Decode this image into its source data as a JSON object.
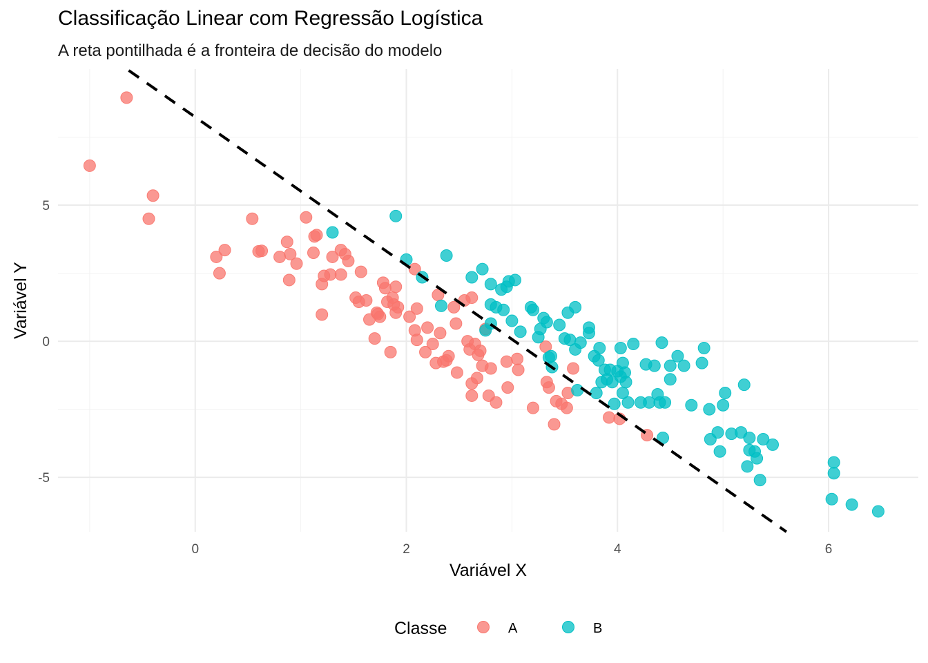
{
  "chart_data": {
    "type": "scatter",
    "title": "Classificação Linear com Regressão Logística",
    "subtitle": "A reta pontilhada é a fronteira de decisão do modelo",
    "xlabel": "Variável X",
    "ylabel": "Variável Y",
    "xlim": [
      -1.3,
      6.85
    ],
    "ylim": [
      -7.0,
      10.0
    ],
    "x_ticks": [
      0,
      2,
      4,
      6
    ],
    "y_ticks": [
      -5,
      0,
      5
    ],
    "grid": true,
    "legend": {
      "title": "Classe",
      "placement": "bottom"
    },
    "decision_boundary": {
      "style": "dashed",
      "color": "#000000",
      "x": [
        -0.63,
        5.6
      ],
      "y": [
        9.95,
        -7.0
      ]
    },
    "series": [
      {
        "name": "A",
        "color": "#F8766D",
        "points": [
          [
            -0.65,
            8.95
          ],
          [
            -1.0,
            6.45
          ],
          [
            -0.4,
            5.35
          ],
          [
            -0.44,
            4.5
          ],
          [
            0.2,
            3.1
          ],
          [
            0.28,
            3.35
          ],
          [
            0.23,
            2.5
          ],
          [
            0.54,
            4.5
          ],
          [
            0.6,
            3.3
          ],
          [
            0.63,
            3.32
          ],
          [
            0.8,
            3.1
          ],
          [
            0.87,
            3.65
          ],
          [
            0.9,
            3.2
          ],
          [
            0.89,
            2.25
          ],
          [
            0.96,
            2.85
          ],
          [
            1.05,
            4.55
          ],
          [
            1.13,
            3.85
          ],
          [
            1.15,
            3.9
          ],
          [
            1.12,
            3.25
          ],
          [
            1.2,
            2.1
          ],
          [
            1.22,
            2.4
          ],
          [
            1.2,
            0.98
          ],
          [
            1.28,
            2.45
          ],
          [
            1.3,
            3.1
          ],
          [
            1.38,
            2.45
          ],
          [
            1.38,
            3.35
          ],
          [
            1.42,
            3.2
          ],
          [
            1.45,
            2.95
          ],
          [
            1.52,
            1.6
          ],
          [
            1.55,
            1.45
          ],
          [
            1.57,
            2.55
          ],
          [
            1.62,
            1.5
          ],
          [
            1.65,
            0.8
          ],
          [
            1.7,
            0.1
          ],
          [
            1.72,
            1.05
          ],
          [
            1.73,
            1.0
          ],
          [
            1.75,
            0.9
          ],
          [
            1.78,
            2.15
          ],
          [
            1.8,
            1.95
          ],
          [
            1.82,
            1.45
          ],
          [
            1.85,
            -0.4
          ],
          [
            1.87,
            1.6
          ],
          [
            1.88,
            1.35
          ],
          [
            1.9,
            1.05
          ],
          [
            1.9,
            2.0
          ],
          [
            1.92,
            1.25
          ],
          [
            2.03,
            0.9
          ],
          [
            2.08,
            2.65
          ],
          [
            2.08,
            0.4
          ],
          [
            2.1,
            1.2
          ],
          [
            2.1,
            0.05
          ],
          [
            2.18,
            -0.4
          ],
          [
            2.2,
            0.5
          ],
          [
            2.25,
            -0.1
          ],
          [
            2.28,
            -0.8
          ],
          [
            2.3,
            1.7
          ],
          [
            2.32,
            0.3
          ],
          [
            2.35,
            -0.75
          ],
          [
            2.38,
            -0.7
          ],
          [
            2.4,
            -0.55
          ],
          [
            2.45,
            1.25
          ],
          [
            2.47,
            0.65
          ],
          [
            2.48,
            -1.15
          ],
          [
            2.55,
            1.5
          ],
          [
            2.58,
            0.0
          ],
          [
            2.6,
            -0.3
          ],
          [
            2.62,
            -1.55
          ],
          [
            2.62,
            1.6
          ],
          [
            2.62,
            -2.0
          ],
          [
            2.65,
            -0.1
          ],
          [
            2.67,
            -1.35
          ],
          [
            2.68,
            -0.5
          ],
          [
            2.7,
            -0.35
          ],
          [
            2.72,
            -0.9
          ],
          [
            2.75,
            0.45
          ],
          [
            2.78,
            -2.0
          ],
          [
            2.8,
            -1.0
          ],
          [
            2.85,
            -2.25
          ],
          [
            2.95,
            -0.75
          ],
          [
            2.96,
            -1.7
          ],
          [
            3.05,
            -0.65
          ],
          [
            3.06,
            -1.05
          ],
          [
            3.2,
            -2.45
          ],
          [
            3.32,
            -0.2
          ],
          [
            3.33,
            -1.5
          ],
          [
            3.35,
            -1.7
          ],
          [
            3.4,
            -3.05
          ],
          [
            3.42,
            -2.2
          ],
          [
            3.47,
            -2.3
          ],
          [
            3.52,
            -2.45
          ],
          [
            3.53,
            -1.9
          ],
          [
            3.58,
            -1.0
          ],
          [
            3.92,
            -2.8
          ],
          [
            4.02,
            -2.85
          ],
          [
            4.28,
            -3.45
          ]
        ]
      },
      {
        "name": "B",
        "color": "#00BFC4",
        "points": [
          [
            1.3,
            4.0
          ],
          [
            1.9,
            4.6
          ],
          [
            2.0,
            3.0
          ],
          [
            2.15,
            2.35
          ],
          [
            2.33,
            1.3
          ],
          [
            2.38,
            3.15
          ],
          [
            2.62,
            2.35
          ],
          [
            2.72,
            2.65
          ],
          [
            2.75,
            0.4
          ],
          [
            2.8,
            1.35
          ],
          [
            2.8,
            2.1
          ],
          [
            2.8,
            0.65
          ],
          [
            2.85,
            1.25
          ],
          [
            2.9,
            1.9
          ],
          [
            2.92,
            1.15
          ],
          [
            2.95,
            2.0
          ],
          [
            2.97,
            2.2
          ],
          [
            3.0,
            0.75
          ],
          [
            3.03,
            2.25
          ],
          [
            3.08,
            0.35
          ],
          [
            3.18,
            1.25
          ],
          [
            3.2,
            1.15
          ],
          [
            3.25,
            0.15
          ],
          [
            3.27,
            0.45
          ],
          [
            3.3,
            0.85
          ],
          [
            3.33,
            0.7
          ],
          [
            3.35,
            -0.6
          ],
          [
            3.37,
            -0.55
          ],
          [
            3.38,
            -0.95
          ],
          [
            3.45,
            0.6
          ],
          [
            3.5,
            0.1
          ],
          [
            3.53,
            1.05
          ],
          [
            3.55,
            0.05
          ],
          [
            3.6,
            1.25
          ],
          [
            3.6,
            -0.3
          ],
          [
            3.62,
            -1.8
          ],
          [
            3.65,
            -0.05
          ],
          [
            3.73,
            0.5
          ],
          [
            3.73,
            0.3
          ],
          [
            3.78,
            -0.55
          ],
          [
            3.8,
            -1.9
          ],
          [
            3.82,
            -0.7
          ],
          [
            3.83,
            -0.25
          ],
          [
            3.85,
            -1.5
          ],
          [
            3.88,
            -1.05
          ],
          [
            3.9,
            -1.4
          ],
          [
            3.93,
            -1.05
          ],
          [
            3.95,
            -1.5
          ],
          [
            3.97,
            -2.3
          ],
          [
            4.0,
            -1.1
          ],
          [
            4.03,
            -0.25
          ],
          [
            4.03,
            -1.3
          ],
          [
            4.05,
            -1.9
          ],
          [
            4.05,
            -0.8
          ],
          [
            4.07,
            -1.15
          ],
          [
            4.08,
            -1.5
          ],
          [
            4.1,
            -2.25
          ],
          [
            4.15,
            -0.1
          ],
          [
            4.22,
            -2.25
          ],
          [
            4.27,
            -0.85
          ],
          [
            4.3,
            -2.25
          ],
          [
            4.35,
            -0.9
          ],
          [
            4.38,
            -1.95
          ],
          [
            4.4,
            -2.25
          ],
          [
            4.42,
            -0.05
          ],
          [
            4.43,
            -3.55
          ],
          [
            4.45,
            -2.25
          ],
          [
            4.5,
            -1.4
          ],
          [
            4.5,
            -0.9
          ],
          [
            4.57,
            -0.55
          ],
          [
            4.63,
            -0.9
          ],
          [
            4.7,
            -2.35
          ],
          [
            4.8,
            -0.8
          ],
          [
            4.82,
            -0.25
          ],
          [
            4.87,
            -2.5
          ],
          [
            4.88,
            -3.6
          ],
          [
            4.95,
            -3.35
          ],
          [
            4.97,
            -4.05
          ],
          [
            5.0,
            -2.35
          ],
          [
            5.02,
            -1.9
          ],
          [
            5.08,
            -3.4
          ],
          [
            5.2,
            -1.6
          ],
          [
            5.17,
            -3.35
          ],
          [
            5.23,
            -4.6
          ],
          [
            5.25,
            -3.55
          ],
          [
            5.25,
            -4.0
          ],
          [
            5.3,
            -4.05
          ],
          [
            5.32,
            -4.3
          ],
          [
            5.35,
            -5.1
          ],
          [
            5.38,
            -3.6
          ],
          [
            5.47,
            -3.8
          ],
          [
            6.05,
            -4.45
          ],
          [
            6.05,
            -4.85
          ],
          [
            6.03,
            -5.8
          ],
          [
            6.22,
            -6.0
          ],
          [
            6.47,
            -6.25
          ]
        ]
      }
    ]
  }
}
